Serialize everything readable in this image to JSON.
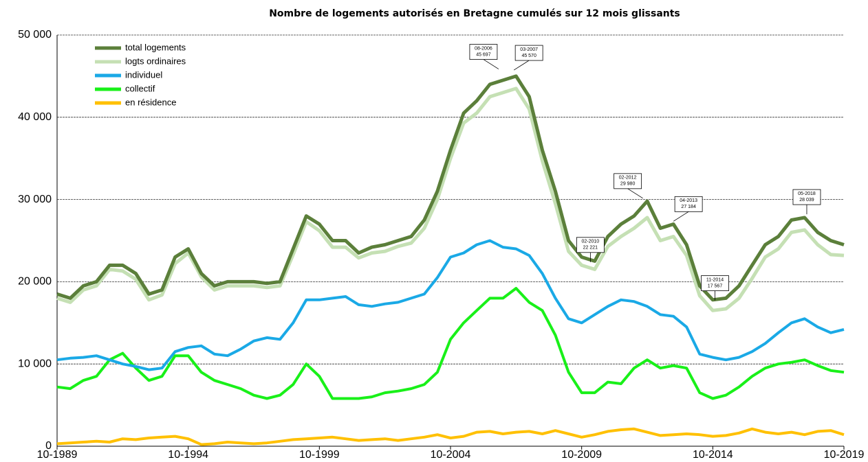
{
  "chart_data": {
    "type": "line",
    "title": "Nombre de logements autorisés en Bretagne cumulés sur 12 mois glissants",
    "x": [
      1989.75,
      1990.25,
      1990.75,
      1991.25,
      1991.75,
      1992.25,
      1992.75,
      1993.25,
      1993.75,
      1994.25,
      1994.75,
      1995.25,
      1995.75,
      1996.25,
      1996.75,
      1997.25,
      1997.75,
      1998.25,
      1998.75,
      1999.25,
      1999.75,
      2000.25,
      2000.75,
      2001.25,
      2001.75,
      2002.25,
      2002.75,
      2003.25,
      2003.75,
      2004.25,
      2004.75,
      2005.25,
      2005.75,
      2006.25,
      2006.75,
      2007.25,
      2007.75,
      2008.25,
      2008.75,
      2009.25,
      2009.75,
      2010.25,
      2010.75,
      2011.25,
      2011.75,
      2012.25,
      2012.75,
      2013.25,
      2013.75,
      2014.25,
      2014.75,
      2015.25,
      2015.75,
      2016.25,
      2016.75,
      2017.25,
      2017.75,
      2018.25,
      2018.75,
      2019.25,
      2019.75
    ],
    "xlim": [
      1989.75,
      2019.75
    ],
    "xticks": [
      {
        "value": 1989.75,
        "label": "10-1989"
      },
      {
        "value": 1994.75,
        "label": "10-1994"
      },
      {
        "value": 1999.75,
        "label": "10-1999"
      },
      {
        "value": 2004.75,
        "label": "10-2004"
      },
      {
        "value": 2009.75,
        "label": "10-2009"
      },
      {
        "value": 2014.75,
        "label": "10-2014"
      },
      {
        "value": 2019.75,
        "label": "10-2019"
      }
    ],
    "ylim": [
      0,
      50000
    ],
    "yticks": [
      0,
      {
        "value": 10000,
        "label": "10 000"
      },
      {
        "value": 20000,
        "label": "20 000"
      },
      {
        "value": 30000,
        "label": "30 000"
      },
      {
        "value": 40000,
        "label": "40 000"
      },
      {
        "value": 50000,
        "label": "50 000"
      }
    ],
    "grid": true,
    "legend": "top-left",
    "series": [
      {
        "name": "total logements",
        "color": "#5b7f3a",
        "values": [
          18500,
          18000,
          19500,
          20000,
          22000,
          22000,
          21000,
          18500,
          19000,
          23000,
          24000,
          21000,
          19500,
          20000,
          20000,
          20000,
          19800,
          20000,
          24000,
          28000,
          27000,
          25000,
          25000,
          23500,
          24200,
          24500,
          25000,
          25500,
          27500,
          31000,
          36000,
          40500,
          42000,
          44000,
          44500,
          45000,
          42500,
          36000,
          31000,
          25000,
          23000,
          22500,
          25500,
          27000,
          28000,
          29800,
          26500,
          27000,
          24500,
          19500,
          17800,
          18000,
          19500,
          22000,
          24500,
          25500,
          27500,
          27800,
          26000,
          25000,
          24500
        ]
      },
      {
        "name": "logts ordinaires",
        "color": "#c5e0b4",
        "values": [
          18000,
          17500,
          19000,
          19500,
          21500,
          21300,
          20300,
          17800,
          18400,
          22200,
          23500,
          20600,
          19000,
          19500,
          19500,
          19500,
          19300,
          19500,
          23300,
          27300,
          26200,
          24200,
          24200,
          22900,
          23500,
          23700,
          24300,
          24700,
          26500,
          30000,
          35000,
          39300,
          40500,
          42500,
          43000,
          43500,
          41000,
          34700,
          29500,
          23700,
          22000,
          21500,
          24300,
          25500,
          26500,
          27800,
          25000,
          25500,
          23200,
          18300,
          16500,
          16700,
          18000,
          20400,
          23000,
          24000,
          26000,
          26300,
          24500,
          23300,
          23200
        ]
      },
      {
        "name": "individuel",
        "color": "#1aa9e6",
        "values": [
          10500,
          10700,
          10800,
          11000,
          10500,
          10000,
          9700,
          9300,
          9500,
          11500,
          12000,
          12200,
          11200,
          11000,
          11800,
          12800,
          13200,
          13000,
          15000,
          17800,
          17800,
          18000,
          18200,
          17200,
          17000,
          17300,
          17500,
          18000,
          18500,
          20500,
          23000,
          23500,
          24500,
          25000,
          24200,
          24000,
          23200,
          21000,
          18000,
          15500,
          15000,
          16000,
          17000,
          17800,
          17600,
          17000,
          16000,
          15800,
          14500,
          11200,
          10800,
          10500,
          10800,
          11500,
          12500,
          13800,
          15000,
          15500,
          14500,
          13800,
          14200
        ]
      },
      {
        "name": "collectif",
        "color": "#19f019",
        "values": [
          7200,
          7000,
          8000,
          8500,
          10500,
          11300,
          9500,
          8000,
          8500,
          11000,
          11000,
          9000,
          8000,
          7500,
          7000,
          6200,
          5800,
          6200,
          7500,
          10000,
          8500,
          5800,
          5800,
          5800,
          6000,
          6500,
          6700,
          7000,
          7500,
          9000,
          13000,
          15000,
          16500,
          18000,
          18000,
          19200,
          17500,
          16500,
          13500,
          9000,
          6500,
          6500,
          7800,
          7600,
          9500,
          10500,
          9500,
          9800,
          9500,
          6500,
          5800,
          6200,
          7200,
          8500,
          9500,
          10000,
          10200,
          10500,
          9800,
          9200,
          9000
        ]
      },
      {
        "name": "en résidence",
        "color": "#ffc000",
        "values": [
          300,
          400,
          500,
          600,
          500,
          900,
          800,
          1000,
          1100,
          1200,
          900,
          200,
          300,
          500,
          400,
          300,
          400,
          600,
          800,
          900,
          1000,
          1100,
          900,
          700,
          800,
          900,
          700,
          900,
          1100,
          1400,
          1000,
          1200,
          1700,
          1800,
          1500,
          1700,
          1800,
          1500,
          1900,
          1500,
          1100,
          1400,
          1800,
          2000,
          2100,
          1700,
          1300,
          1400,
          1500,
          1400,
          1200,
          1300,
          1600,
          2100,
          1700,
          1500,
          1700,
          1400,
          1800,
          1900,
          1400
        ]
      }
    ],
    "annotations": [
      {
        "date": "08-2006",
        "value": 45697,
        "label": "45 697"
      },
      {
        "date": "03-2007",
        "value": 45570,
        "label": "45 570"
      },
      {
        "date": "02-2010",
        "value": 22221,
        "label": "22 221"
      },
      {
        "date": "02-2012",
        "value": 29980,
        "label": "29 980"
      },
      {
        "date": "04-2013",
        "value": 27184,
        "label": "27 184"
      },
      {
        "date": "11-2014",
        "value": 17567,
        "label": "17 567"
      },
      {
        "date": "05-2018",
        "value": 28039,
        "label": "28 039"
      }
    ]
  }
}
